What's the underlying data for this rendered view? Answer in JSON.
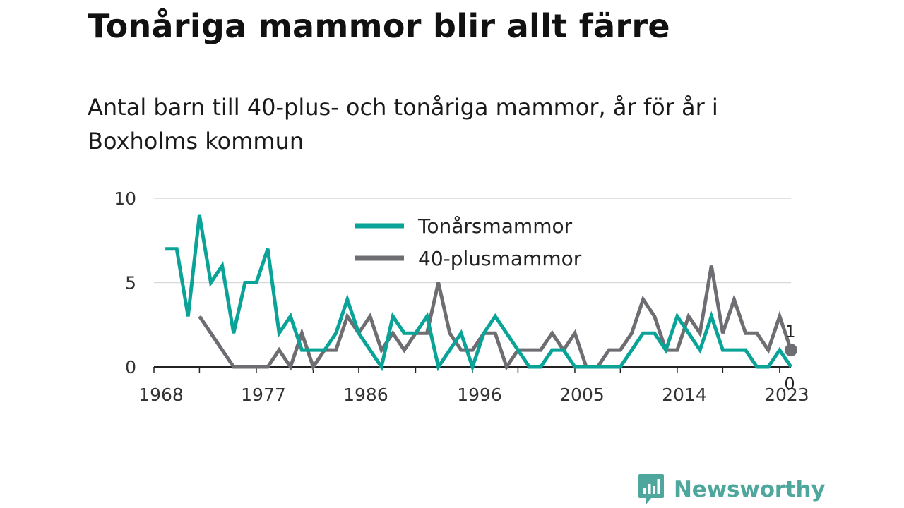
{
  "title": "Tonåriga mammor blir allt färre",
  "subtitle": "Antal barn till 40-plus- och tonåriga mammor, år för år i Boxholms kommun",
  "brand": "Newsworthy",
  "colors": {
    "teen": "#0aa397",
    "forty": "#6e6d72",
    "axis": "#222222",
    "grid": "#d9d9d9",
    "brand": "#4fa69c"
  },
  "chart_data": {
    "type": "line",
    "title": "",
    "xlabel": "",
    "ylabel": "",
    "ylim": [
      0,
      10
    ],
    "xlim": [
      1968,
      2024
    ],
    "yticks": [
      0,
      5,
      10
    ],
    "xticks": [
      1968,
      1977,
      1986,
      1996,
      2005,
      2014,
      2023
    ],
    "grid": true,
    "legend": "top-center",
    "series": [
      {
        "name": "Tonårsmammor",
        "color": "#0aa397",
        "x": [
          1969,
          1970,
          1971,
          1972,
          1973,
          1974,
          1975,
          1976,
          1977,
          1978,
          1979,
          1980,
          1981,
          1982,
          1983,
          1984,
          1985,
          1986,
          1987,
          1988,
          1989,
          1990,
          1991,
          1992,
          1993,
          1994,
          1995,
          1996,
          1997,
          1998,
          1999,
          2000,
          2001,
          2002,
          2003,
          2004,
          2005,
          2006,
          2007,
          2008,
          2009,
          2010,
          2011,
          2012,
          2013,
          2014,
          2015,
          2016,
          2017,
          2018,
          2019,
          2020,
          2021,
          2022,
          2023,
          2024
        ],
        "y": [
          7,
          7,
          3,
          9,
          5,
          6,
          2,
          5,
          5,
          7,
          2,
          3,
          1,
          1,
          1,
          2,
          4,
          2,
          1,
          0,
          3,
          2,
          2,
          3,
          0,
          1,
          2,
          0,
          2,
          3,
          2,
          1,
          0,
          0,
          1,
          1,
          0,
          0,
          0,
          0,
          0,
          1,
          2,
          2,
          1,
          3,
          2,
          1,
          3,
          1,
          1,
          1,
          0,
          0,
          1,
          0
        ],
        "end_label": "0"
      },
      {
        "name": "40-plusmammor",
        "color": "#6e6d72",
        "x": [
          1972,
          1975,
          1976,
          1977,
          1978,
          1979,
          1980,
          1981,
          1982,
          1983,
          1984,
          1985,
          1986,
          1987,
          1988,
          1989,
          1990,
          1991,
          1992,
          1993,
          1994,
          1995,
          1996,
          1997,
          1998,
          1999,
          2000,
          2001,
          2002,
          2003,
          2004,
          2005,
          2006,
          2007,
          2008,
          2009,
          2010,
          2011,
          2012,
          2013,
          2014,
          2015,
          2016,
          2017,
          2018,
          2019,
          2020,
          2021,
          2022,
          2023,
          2024
        ],
        "y": [
          3,
          0,
          0,
          0,
          0,
          1,
          0,
          2,
          0,
          1,
          1,
          3,
          2,
          3,
          1,
          2,
          1,
          2,
          2,
          5,
          2,
          1,
          1,
          2,
          2,
          0,
          1,
          1,
          1,
          2,
          1,
          2,
          0,
          0,
          1,
          1,
          2,
          4,
          3,
          1,
          1,
          3,
          2,
          6,
          2,
          4,
          2,
          2,
          1,
          3,
          1
        ],
        "end_label": "1"
      }
    ]
  }
}
